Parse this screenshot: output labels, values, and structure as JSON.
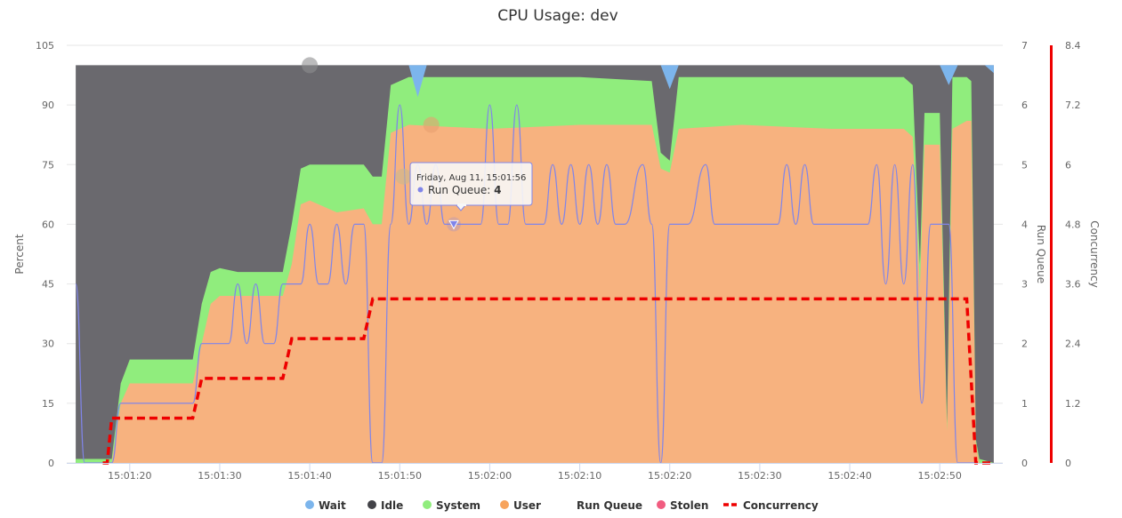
{
  "chart_data": {
    "type": "area",
    "title": "CPU Usage: dev",
    "ylabel": "Percent",
    "ylabel_right1": "Run Queue",
    "ylabel_right2": "Concurrency",
    "ylim": [
      0,
      105
    ],
    "ylim_right1": [
      0,
      7
    ],
    "ylim_right2": [
      0,
      8.4
    ],
    "y_ticks": [
      "0",
      "15",
      "30",
      "45",
      "60",
      "75",
      "90",
      "105"
    ],
    "y_ticks_right1": [
      "0",
      "1",
      "2",
      "3",
      "4",
      "5",
      "6",
      "7"
    ],
    "y_ticks_right2": [
      "0",
      "1.2",
      "2.4",
      "3.6",
      "4.8",
      "6",
      "7.2",
      "8.4"
    ],
    "x_range_seconds": [
      73,
      177
    ],
    "x_ticks": [
      {
        "t": 80,
        "label": "15:01:20"
      },
      {
        "t": 90,
        "label": "15:01:30"
      },
      {
        "t": 100,
        "label": "15:01:40"
      },
      {
        "t": 110,
        "label": "15:01:50"
      },
      {
        "t": 120,
        "label": "15:02:00"
      },
      {
        "t": 130,
        "label": "15:02:10"
      },
      {
        "t": 140,
        "label": "15:02:20"
      },
      {
        "t": 150,
        "label": "15:02:30"
      },
      {
        "t": 160,
        "label": "15:02:40"
      },
      {
        "t": 170,
        "label": "15:02:50"
      }
    ],
    "grid": true,
    "legend_position": "bottom",
    "stacked_series": [
      {
        "name": "User",
        "color": "#f7b27f",
        "points": [
          [
            74,
            0
          ],
          [
            77,
            0
          ],
          [
            78,
            0
          ],
          [
            79,
            15
          ],
          [
            80,
            20
          ],
          [
            87,
            20
          ],
          [
            88,
            30
          ],
          [
            89,
            40
          ],
          [
            90,
            42
          ],
          [
            97,
            42
          ],
          [
            98,
            50
          ],
          [
            99,
            65
          ],
          [
            100,
            66
          ],
          [
            103,
            63
          ],
          [
            106,
            64
          ],
          [
            107,
            60
          ],
          [
            108,
            60
          ],
          [
            109,
            83
          ],
          [
            111,
            85
          ],
          [
            120,
            84
          ],
          [
            130,
            85
          ],
          [
            138,
            85
          ],
          [
            139,
            74
          ],
          [
            140,
            73
          ],
          [
            141,
            84
          ],
          [
            148,
            85
          ],
          [
            158,
            84
          ],
          [
            166,
            84
          ],
          [
            167,
            82
          ],
          [
            167.8,
            44
          ],
          [
            168.3,
            80
          ],
          [
            170,
            80
          ],
          [
            170.8,
            8
          ],
          [
            171.4,
            84
          ],
          [
            173,
            86
          ],
          [
            173.5,
            86
          ],
          [
            174,
            5
          ],
          [
            174.4,
            0
          ],
          [
            176,
            0
          ]
        ]
      },
      {
        "name": "System",
        "color": "#90ed7d",
        "points": [
          [
            74,
            1
          ],
          [
            77,
            1
          ],
          [
            78,
            1
          ],
          [
            79,
            20
          ],
          [
            80,
            26
          ],
          [
            87,
            26
          ],
          [
            88,
            40
          ],
          [
            89,
            48
          ],
          [
            90,
            49
          ],
          [
            92,
            48
          ],
          [
            97,
            48
          ],
          [
            98,
            60
          ],
          [
            99,
            74
          ],
          [
            100,
            75
          ],
          [
            106,
            75
          ],
          [
            107,
            72
          ],
          [
            108,
            72
          ],
          [
            109,
            95
          ],
          [
            111,
            97
          ],
          [
            120,
            97
          ],
          [
            130,
            97
          ],
          [
            138,
            96
          ],
          [
            139,
            78
          ],
          [
            140,
            76
          ],
          [
            141,
            97
          ],
          [
            148,
            97
          ],
          [
            158,
            97
          ],
          [
            166,
            97
          ],
          [
            167,
            95
          ],
          [
            167.8,
            50
          ],
          [
            168.3,
            88
          ],
          [
            170,
            88
          ],
          [
            170.8,
            10
          ],
          [
            171.4,
            97
          ],
          [
            173,
            97
          ],
          [
            173.5,
            96
          ],
          [
            174,
            6
          ],
          [
            174.4,
            1
          ],
          [
            176,
            0
          ]
        ]
      },
      {
        "name": "Idle",
        "color": "#6a696e",
        "points": [
          [
            74,
            100
          ],
          [
            176,
            100
          ]
        ]
      },
      {
        "name": "Wait",
        "color": "#7cb5ec",
        "points": [
          [
            111,
            100
          ],
          [
            112,
            92
          ],
          [
            113,
            100
          ],
          [
            139,
            100
          ],
          [
            140,
            94
          ],
          [
            141,
            100
          ],
          [
            170,
            100
          ],
          [
            171,
            95
          ],
          [
            172,
            100
          ],
          [
            175,
            100
          ],
          [
            176,
            98
          ]
        ]
      }
    ],
    "run_queue": {
      "name": "Run Queue",
      "color": "#8085e9",
      "points": [
        [
          74,
          3
        ],
        [
          75,
          0
        ],
        [
          78,
          0
        ],
        [
          79,
          1
        ],
        [
          87,
          1
        ],
        [
          88,
          2
        ],
        [
          90,
          2
        ],
        [
          91,
          2
        ],
        [
          92,
          3
        ],
        [
          93,
          2
        ],
        [
          94,
          3
        ],
        [
          95,
          2
        ],
        [
          96,
          2
        ],
        [
          97,
          3
        ],
        [
          98,
          3
        ],
        [
          99,
          3
        ],
        [
          100,
          4
        ],
        [
          101,
          3
        ],
        [
          102,
          3
        ],
        [
          103,
          4
        ],
        [
          104,
          3
        ],
        [
          105,
          4
        ],
        [
          106,
          4
        ],
        [
          107,
          0
        ],
        [
          108,
          0
        ],
        [
          109,
          4
        ],
        [
          110,
          6
        ],
        [
          111,
          4
        ],
        [
          112,
          5
        ],
        [
          113,
          4
        ],
        [
          114,
          5
        ],
        [
          115,
          4
        ],
        [
          116,
          4
        ],
        [
          117,
          4
        ],
        [
          118,
          4
        ],
        [
          119,
          4
        ],
        [
          120,
          6
        ],
        [
          121,
          4
        ],
        [
          122,
          4
        ],
        [
          123,
          6
        ],
        [
          124,
          4
        ],
        [
          125,
          4
        ],
        [
          126,
          4
        ],
        [
          127,
          5
        ],
        [
          128,
          4
        ],
        [
          129,
          5
        ],
        [
          130,
          4
        ],
        [
          131,
          5
        ],
        [
          132,
          4
        ],
        [
          133,
          5
        ],
        [
          134,
          4
        ],
        [
          135,
          4
        ],
        [
          137,
          5
        ],
        [
          138,
          4
        ],
        [
          139,
          0
        ],
        [
          140,
          4
        ],
        [
          141,
          4
        ],
        [
          142,
          4
        ],
        [
          144,
          5
        ],
        [
          145,
          4
        ],
        [
          152,
          4
        ],
        [
          153,
          5
        ],
        [
          154,
          4
        ],
        [
          155,
          5
        ],
        [
          156,
          4
        ],
        [
          162,
          4
        ],
        [
          163,
          5
        ],
        [
          164,
          3
        ],
        [
          165,
          5
        ],
        [
          166,
          3
        ],
        [
          167,
          5
        ],
        [
          168,
          1
        ],
        [
          169,
          4
        ],
        [
          170,
          4
        ],
        [
          171,
          4
        ],
        [
          172,
          0
        ],
        [
          173,
          0
        ],
        [
          174,
          0
        ]
      ]
    },
    "concurrency": {
      "name": "Concurrency",
      "color": "#ee0000",
      "points": [
        [
          77,
          0
        ],
        [
          77.5,
          0
        ],
        [
          78,
          0.9
        ],
        [
          87,
          0.9
        ],
        [
          88,
          1.7
        ],
        [
          97,
          1.7
        ],
        [
          98,
          2.5
        ],
        [
          106,
          2.5
        ],
        [
          107,
          3.3
        ],
        [
          173,
          3.3
        ],
        [
          174,
          0
        ],
        [
          176,
          0
        ]
      ]
    },
    "markers": [
      {
        "t": 100,
        "value": 100,
        "kind": "idle-point"
      },
      {
        "t": 113.5,
        "value": 85,
        "kind": "user-point"
      },
      {
        "t": 110.4,
        "value": 72,
        "kind": "system-point"
      }
    ],
    "tooltip": {
      "date": "Friday, Aug 11, 15:01:56",
      "series": "Run Queue: ",
      "value": "4",
      "t": 116,
      "rq": 4
    },
    "legend": [
      {
        "name": "Wait",
        "color": "#7cb5ec",
        "symbol": "circle"
      },
      {
        "name": "Idle",
        "color": "#434348",
        "symbol": "circle"
      },
      {
        "name": "System",
        "color": "#90ed7d",
        "symbol": "circle"
      },
      {
        "name": "User",
        "color": "#f7a35c",
        "symbol": "circle"
      },
      {
        "name": "Run Queue",
        "color": "",
        "symbol": "none"
      },
      {
        "name": "Stolen",
        "color": "#f15c80",
        "symbol": "circle"
      },
      {
        "name": "Concurrency",
        "color": "#ee0000",
        "symbol": "dash"
      }
    ]
  }
}
